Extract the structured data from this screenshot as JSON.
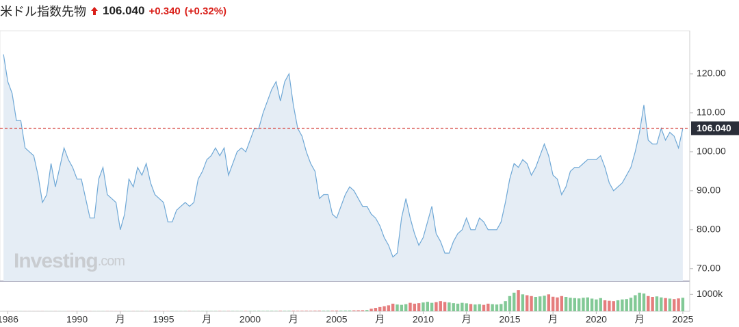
{
  "header": {
    "name": "米ドル指数先物",
    "change": "+0.340",
    "change_pct": "(+0.32%)"
  },
  "watermark": {
    "brand": "Investing",
    "suffix": ".com"
  },
  "chart_data": {
    "type": "area",
    "color": "#6fa8d6",
    "fill": "#e5edf5",
    "current": {
      "value": 106.04,
      "label": "106.040",
      "color": "#d9534f"
    },
    "xlim": [
      1985.55,
      2025.4
    ],
    "ylim": [
      66.8,
      131.05
    ],
    "yticks": [
      {
        "value": 70,
        "label": "70.00"
      },
      {
        "value": 80,
        "label": "80.00"
      },
      {
        "value": 90,
        "label": "90.00"
      },
      {
        "value": 100,
        "label": "100.00"
      },
      {
        "value": 110,
        "label": "110.00"
      },
      {
        "value": 120,
        "label": "120.00"
      }
    ],
    "xticks": [
      {
        "value": 1986,
        "label": "1986"
      },
      {
        "value": 1990,
        "label": "1990"
      },
      {
        "value": 1992.5,
        "label": "月"
      },
      {
        "value": 1995,
        "label": "1995"
      },
      {
        "value": 1997.5,
        "label": "月"
      },
      {
        "value": 2000,
        "label": "2000"
      },
      {
        "value": 2002.5,
        "label": "月"
      },
      {
        "value": 2005,
        "label": "2005"
      },
      {
        "value": 2007.5,
        "label": "月"
      },
      {
        "value": 2010,
        "label": "2010"
      },
      {
        "value": 2012.5,
        "label": "月"
      },
      {
        "value": 2015,
        "label": "2015"
      },
      {
        "value": 2017.5,
        "label": "月"
      },
      {
        "value": 2020,
        "label": "2020"
      },
      {
        "value": 2022.5,
        "label": "月"
      },
      {
        "value": 2025,
        "label": "2025"
      }
    ],
    "x": [
      1985.75,
      1986,
      1986.25,
      1986.5,
      1986.75,
      1987,
      1987.25,
      1987.5,
      1987.75,
      1988,
      1988.25,
      1988.5,
      1988.75,
      1989,
      1989.25,
      1989.5,
      1989.75,
      1990,
      1990.25,
      1990.5,
      1990.75,
      1991,
      1991.25,
      1991.5,
      1991.75,
      1992,
      1992.25,
      1992.5,
      1992.75,
      1993,
      1993.25,
      1993.5,
      1993.75,
      1994,
      1994.25,
      1994.5,
      1994.75,
      1995,
      1995.25,
      1995.5,
      1995.75,
      1996,
      1996.25,
      1996.5,
      1996.75,
      1997,
      1997.25,
      1997.5,
      1997.75,
      1998,
      1998.25,
      1998.5,
      1998.75,
      1999,
      1999.25,
      1999.5,
      1999.75,
      2000,
      2000.25,
      2000.5,
      2000.75,
      2001,
      2001.25,
      2001.5,
      2001.75,
      2002,
      2002.25,
      2002.5,
      2002.75,
      2003,
      2003.25,
      2003.5,
      2003.75,
      2004,
      2004.25,
      2004.5,
      2004.75,
      2005,
      2005.25,
      2005.5,
      2005.75,
      2006,
      2006.25,
      2006.5,
      2006.75,
      2007,
      2007.25,
      2007.5,
      2007.75,
      2008,
      2008.25,
      2008.5,
      2008.75,
      2009,
      2009.25,
      2009.5,
      2009.75,
      2010,
      2010.25,
      2010.5,
      2010.75,
      2011,
      2011.25,
      2011.5,
      2011.75,
      2012,
      2012.25,
      2012.5,
      2012.75,
      2013,
      2013.25,
      2013.5,
      2013.75,
      2014,
      2014.25,
      2014.5,
      2014.75,
      2015,
      2015.25,
      2015.5,
      2015.75,
      2016,
      2016.25,
      2016.5,
      2016.75,
      2017,
      2017.25,
      2017.5,
      2017.75,
      2018,
      2018.25,
      2018.5,
      2018.75,
      2019,
      2019.25,
      2019.5,
      2019.75,
      2020,
      2020.25,
      2020.5,
      2020.75,
      2021,
      2021.25,
      2021.5,
      2021.75,
      2022,
      2022.25,
      2022.5,
      2022.75,
      2023,
      2023.25,
      2023.5,
      2023.75,
      2024,
      2024.25,
      2024.5,
      2024.75,
      2025
    ],
    "values": [
      125,
      118,
      115,
      108,
      108,
      101,
      100,
      99,
      94,
      87,
      89,
      97,
      91,
      96,
      101,
      98,
      96,
      93,
      93,
      88,
      83,
      83,
      93,
      96,
      89,
      88,
      87,
      80,
      84,
      93,
      91,
      96,
      94,
      97,
      92,
      89,
      88,
      87,
      82,
      82,
      85,
      86,
      87,
      86,
      87,
      93,
      95,
      98,
      99,
      101,
      99,
      101,
      94,
      97,
      100,
      101,
      100,
      103,
      106,
      106,
      110,
      113,
      116,
      118,
      113,
      118,
      120,
      112,
      106,
      104,
      100,
      97,
      95,
      88,
      89,
      89,
      84,
      83,
      86,
      89,
      91,
      90,
      88,
      86,
      86,
      84,
      83,
      81,
      78,
      76,
      73,
      74,
      83,
      88,
      83,
      79,
      76,
      78,
      82,
      86,
      79,
      77,
      74,
      74,
      77,
      79,
      80,
      83,
      80,
      80,
      83,
      82,
      80,
      80,
      80,
      82,
      87,
      93,
      97,
      96,
      98,
      97,
      94,
      96,
      99,
      102,
      99,
      94,
      93,
      89,
      91,
      95,
      96,
      96,
      97,
      98,
      98,
      98,
      99,
      96,
      92,
      90,
      91,
      92,
      94,
      96,
      100,
      105,
      112,
      103,
      102,
      102,
      106,
      103,
      105,
      104,
      101,
      106.04
    ],
    "volume": {
      "up_color": "#6cbf84",
      "down_color": "#e06666",
      "ylim": [
        0,
        1700000
      ],
      "yticks": [
        {
          "value": 1000000,
          "label": "1000k"
        }
      ],
      "values": [
        3000,
        3000,
        4000,
        3000,
        5000,
        4000,
        3000,
        4000,
        5000,
        6000,
        4000,
        5000,
        6000,
        5000,
        4000,
        6000,
        7000,
        5000,
        6000,
        8000,
        7000,
        6000,
        7000,
        8000,
        9000,
        7000,
        8000,
        9000,
        10000,
        8000,
        9000,
        10000,
        11000,
        9000,
        10000,
        12000,
        11000,
        10000,
        12000,
        13000,
        12000,
        11000,
        13000,
        14000,
        12000,
        13000,
        15000,
        14000,
        13000,
        15000,
        16000,
        14000,
        15000,
        17000,
        16000,
        15000,
        18000,
        20000,
        22000,
        25000,
        21000,
        24000,
        26000,
        23000,
        27000,
        25000,
        28000,
        30000,
        26000,
        29000,
        31000,
        28000,
        32000,
        35000,
        30000,
        33000,
        36000,
        40000,
        38000,
        42000,
        45000,
        50000,
        55000,
        60000,
        70000,
        150000,
        200000,
        250000,
        300000,
        350000,
        450000,
        400000,
        380000,
        420000,
        500000,
        450000,
        480000,
        520000,
        560000,
        500000,
        540000,
        600000,
        550000,
        520000,
        480000,
        450000,
        500000,
        470000,
        430000,
        400000,
        420000,
        380000,
        450000,
        420000,
        400000,
        430000,
        600000,
        900000,
        1100000,
        1250000,
        1000000,
        950000,
        900000,
        850000,
        880000,
        920000,
        1000000,
        860000,
        820000,
        900000,
        850000,
        800000,
        780000,
        760000,
        800000,
        820000,
        750000,
        700000,
        780000,
        650000,
        620000,
        600000,
        650000,
        700000,
        720000,
        800000,
        950000,
        1100000,
        1050000,
        900000,
        850000,
        880000,
        820000,
        780000,
        750000,
        720000,
        760000,
        800000
      ]
    }
  }
}
